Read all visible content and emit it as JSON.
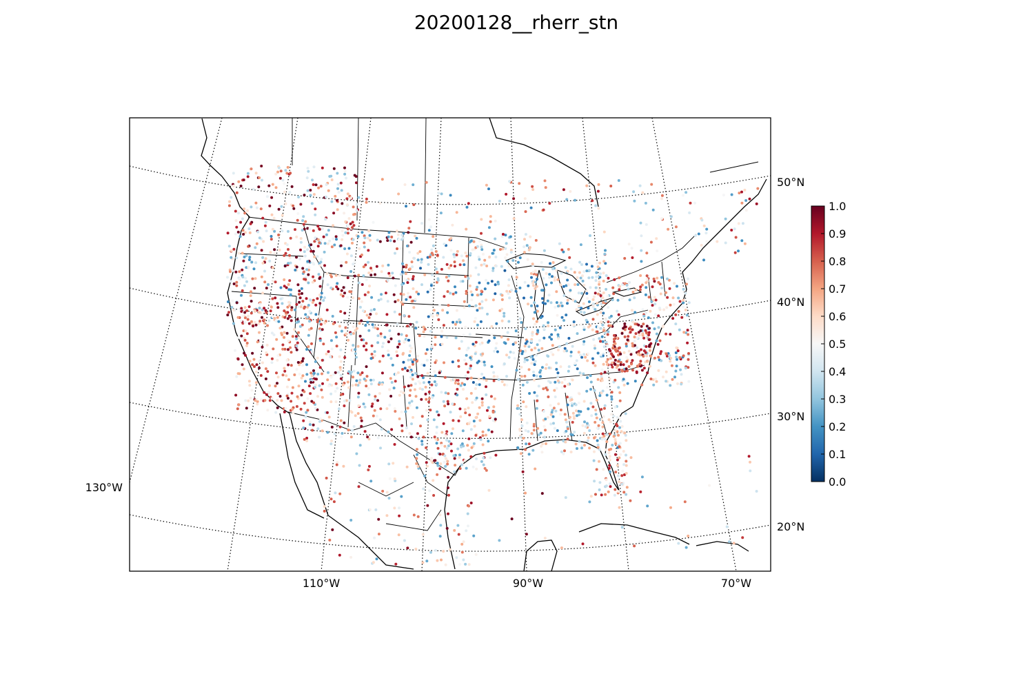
{
  "title": "20200128__rherr_stn",
  "map": {
    "projection": "lambert-conformal-conic",
    "lon_labels": [
      {
        "lon": -130,
        "label": "130°W"
      },
      {
        "lon": -110,
        "label": "110°W"
      },
      {
        "lon": -90,
        "label": "90°W"
      },
      {
        "lon": -70,
        "label": "70°W"
      }
    ],
    "lat_labels": [
      {
        "lat": 50,
        "label": "50°N"
      },
      {
        "lat": 40,
        "label": "40°N"
      },
      {
        "lat": 30,
        "label": "30°N"
      },
      {
        "lat": 20,
        "label": "20°N"
      }
    ],
    "graticule_style": "dotted",
    "coastline_color": "#000000",
    "border_color": "#000000"
  },
  "colorbar": {
    "colormap": "RdBu_r",
    "range": [
      0.0,
      1.0
    ],
    "ticks": [
      "0.0",
      "0.1",
      "0.2",
      "0.3",
      "0.4",
      "0.5",
      "0.6",
      "0.7",
      "0.8",
      "0.9",
      "1.0"
    ],
    "stops": [
      "#053061",
      "#2166ac",
      "#4393c3",
      "#92c5de",
      "#d1e5f0",
      "#f7f7f7",
      "#fddbc7",
      "#f4a582",
      "#d6604d",
      "#b2182b",
      "#67001f"
    ]
  },
  "chart_data": {
    "type": "scatter",
    "title": "20200128__rherr_stn",
    "value_range": [
      0.0,
      1.0
    ],
    "note_points": "station markers colored by value 0.0–1.0 over the contiguous US, southern Canada, Mexico and Caribbean",
    "region_summary": [
      {
        "region": "California coast",
        "dominant": "high (0.8–1.0)"
      },
      {
        "region": "Intermountain West",
        "dominant": "mixed, many high"
      },
      {
        "region": "Great Plains",
        "dominant": "mixed, light"
      },
      {
        "region": "Mid-Atlantic / Chesapeake",
        "dominant": "high (0.8–1.0)"
      },
      {
        "region": "Great Lakes / Midwest",
        "dominant": "low to mid (0.2–0.5)"
      },
      {
        "region": "Florida",
        "dominant": "mid-high"
      }
    ]
  }
}
